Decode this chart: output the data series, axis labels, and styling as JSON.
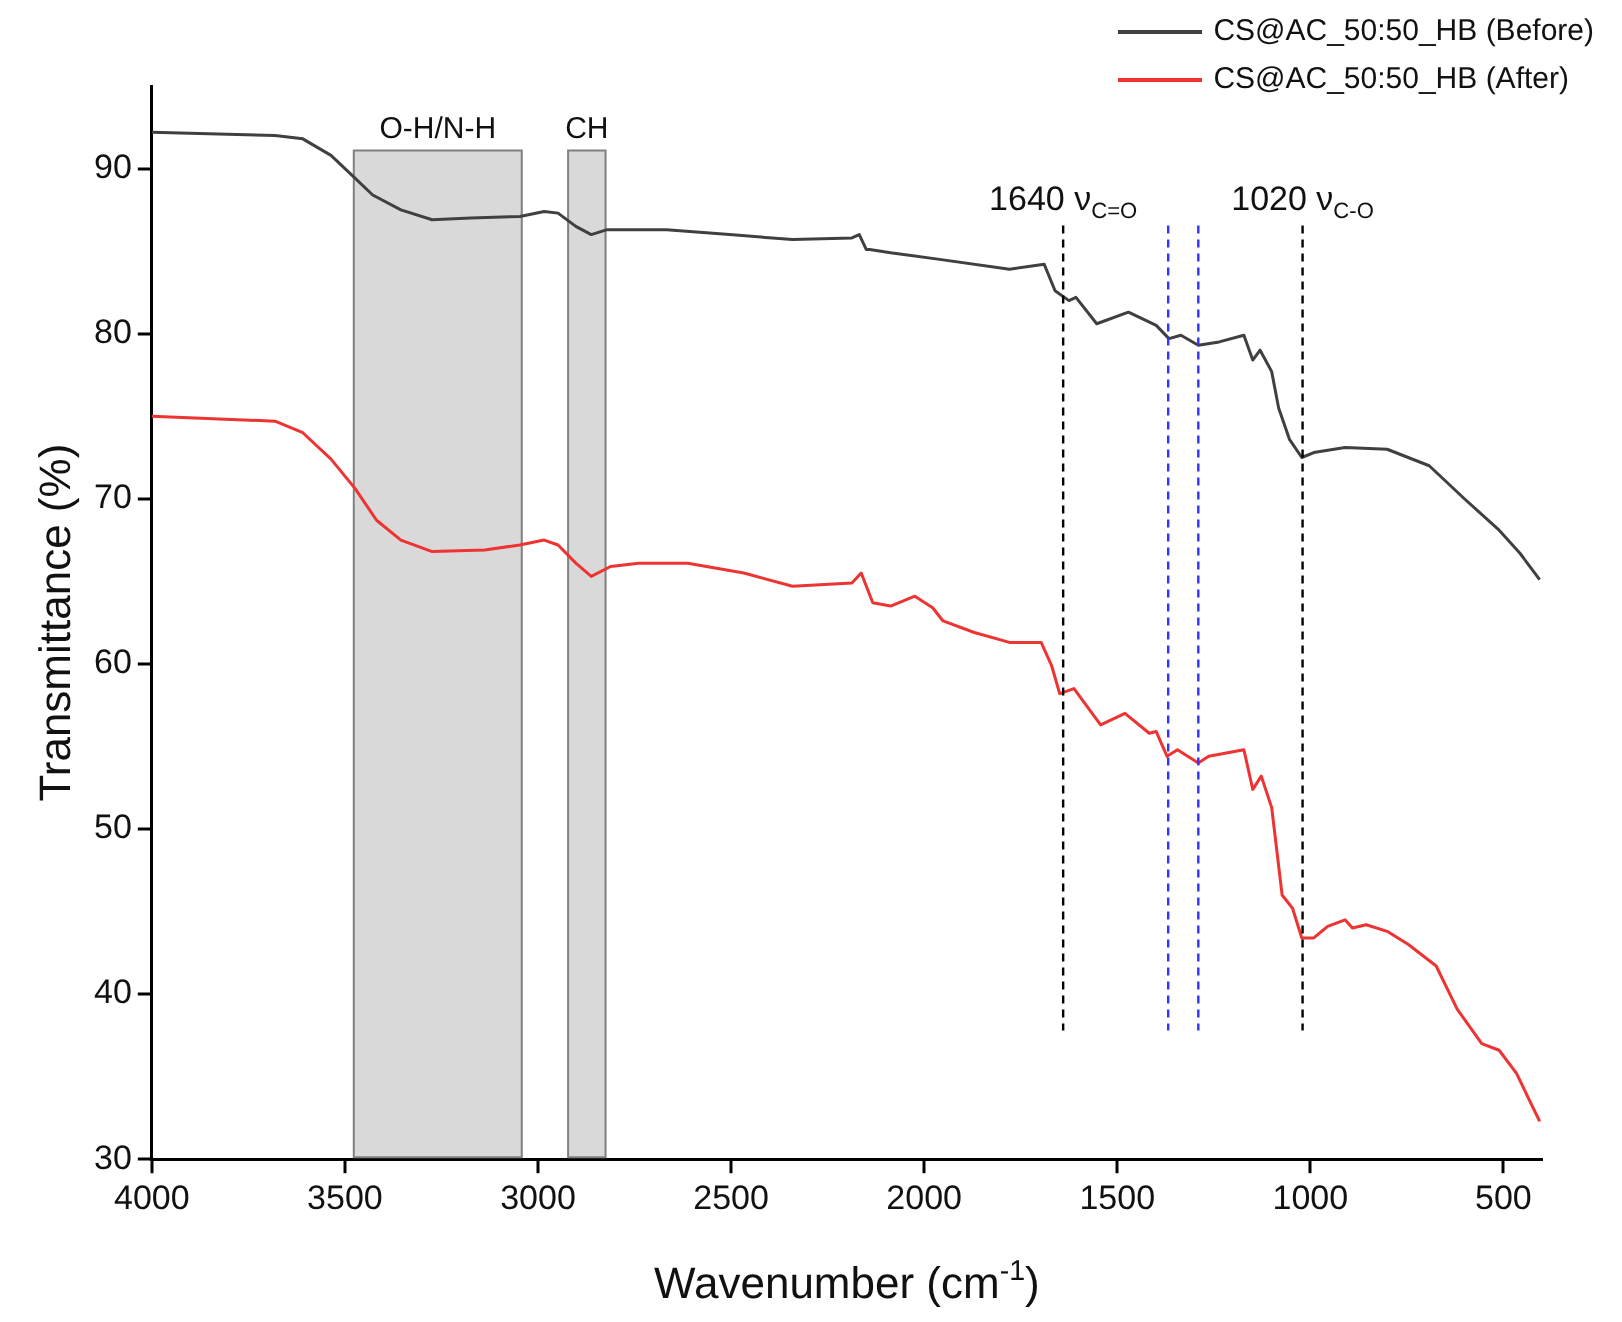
{
  "chart_data": {
    "type": "line",
    "xlabel": "Wavenumber (cm$^{-1}$)",
    "ylabel": "Transmittance (%)",
    "xlim": [
      4000,
      400
    ],
    "ylim": [
      30,
      95
    ],
    "xticks": [
      4000,
      3500,
      3000,
      2500,
      2000,
      1500,
      1000,
      500
    ],
    "yticks": [
      30,
      40,
      50,
      60,
      70,
      80,
      90
    ],
    "grid": false,
    "legend": "top right",
    "marker": "none",
    "line_style": "solid",
    "series": [
      {
        "name": "CS@AC_50:50_HB (Before)",
        "color": "#404040",
        "x": [
          4000,
          3681,
          3609,
          3536,
          3482,
          3428,
          3355,
          3274,
          3174,
          3047,
          2984,
          2948,
          2902,
          2862,
          2821,
          2667,
          2504,
          2341,
          2187,
          2168,
          2150,
          2141,
          2087,
          1960,
          1779,
          1689,
          1661,
          1625,
          1607,
          1553,
          1471,
          1399,
          1366,
          1335,
          1290,
          1236,
          1172,
          1149,
          1130,
          1100,
          1082,
          1054,
          1022,
          991,
          910,
          801,
          692,
          601,
          511,
          457,
          406
        ],
        "values": [
          92.2,
          92.0,
          91.8,
          90.8,
          89.6,
          88.4,
          87.5,
          86.9,
          87.0,
          87.1,
          87.4,
          87.3,
          86.5,
          86.0,
          86.3,
          86.3,
          86.0,
          85.7,
          85.8,
          86.0,
          85.1,
          85.1,
          84.9,
          84.5,
          83.9,
          84.2,
          82.6,
          82.0,
          82.2,
          80.6,
          81.3,
          80.5,
          79.7,
          79.9,
          79.3,
          79.5,
          79.9,
          78.4,
          79.0,
          77.7,
          75.5,
          73.6,
          72.5,
          72.8,
          73.1,
          73.0,
          72.0,
          70.0,
          68.1,
          66.7,
          65.1
        ]
      },
      {
        "name": "CS@AC_50:50_HB (After)",
        "color": "#ee3333",
        "x": [
          4000,
          3681,
          3609,
          3536,
          3473,
          3418,
          3355,
          3274,
          3138,
          3047,
          2984,
          2948,
          2902,
          2862,
          2812,
          2739,
          2612,
          2467,
          2341,
          2187,
          2163,
          2133,
          2087,
          2024,
          1978,
          1951,
          1870,
          1779,
          1697,
          1670,
          1649,
          1612,
          1543,
          1480,
          1417,
          1399,
          1371,
          1344,
          1290,
          1263,
          1172,
          1149,
          1127,
          1100,
          1073,
          1046,
          1022,
          991,
          955,
          910,
          891,
          855,
          801,
          746,
          674,
          620,
          556,
          511,
          466,
          429,
          406
        ],
        "values": [
          75.0,
          74.7,
          74.0,
          72.4,
          70.6,
          68.7,
          67.5,
          66.8,
          66.9,
          67.2,
          67.5,
          67.2,
          66.1,
          65.3,
          65.9,
          66.1,
          66.1,
          65.5,
          64.7,
          64.9,
          65.5,
          63.7,
          63.5,
          64.1,
          63.4,
          62.6,
          61.9,
          61.3,
          61.3,
          59.9,
          58.2,
          58.5,
          56.3,
          57.0,
          55.8,
          55.9,
          54.4,
          54.8,
          54.0,
          54.4,
          54.8,
          52.4,
          53.2,
          51.3,
          46.0,
          45.2,
          43.4,
          43.4,
          44.1,
          44.5,
          44.0,
          44.2,
          43.8,
          43.0,
          41.7,
          39.1,
          37.0,
          36.6,
          35.2,
          33.4,
          32.3
        ]
      }
    ],
    "bands": [
      {
        "axis": "x",
        "from": 3477,
        "to": 3042,
        "label": "O-H/N-H",
        "color": "#d9d9d9"
      },
      {
        "axis": "x",
        "from": 2922,
        "to": 2825,
        "label": "CH",
        "color": "#d9d9d9"
      }
    ],
    "ref_lines": [
      {
        "axis": "x",
        "value": 1640,
        "label": "1640 ν$_{C=O}$",
        "color": "#000000",
        "line_style": "dashed"
      },
      {
        "axis": "x",
        "value": 1368,
        "color": "#3333ff",
        "line_style": "dashed"
      },
      {
        "axis": "x",
        "value": 1290,
        "color": "#3333ff",
        "line_style": "dashed"
      },
      {
        "axis": "x",
        "value": 1020,
        "label": "1020 ν$_{C-O}$",
        "color": "#000000",
        "line_style": "dashed"
      }
    ]
  }
}
